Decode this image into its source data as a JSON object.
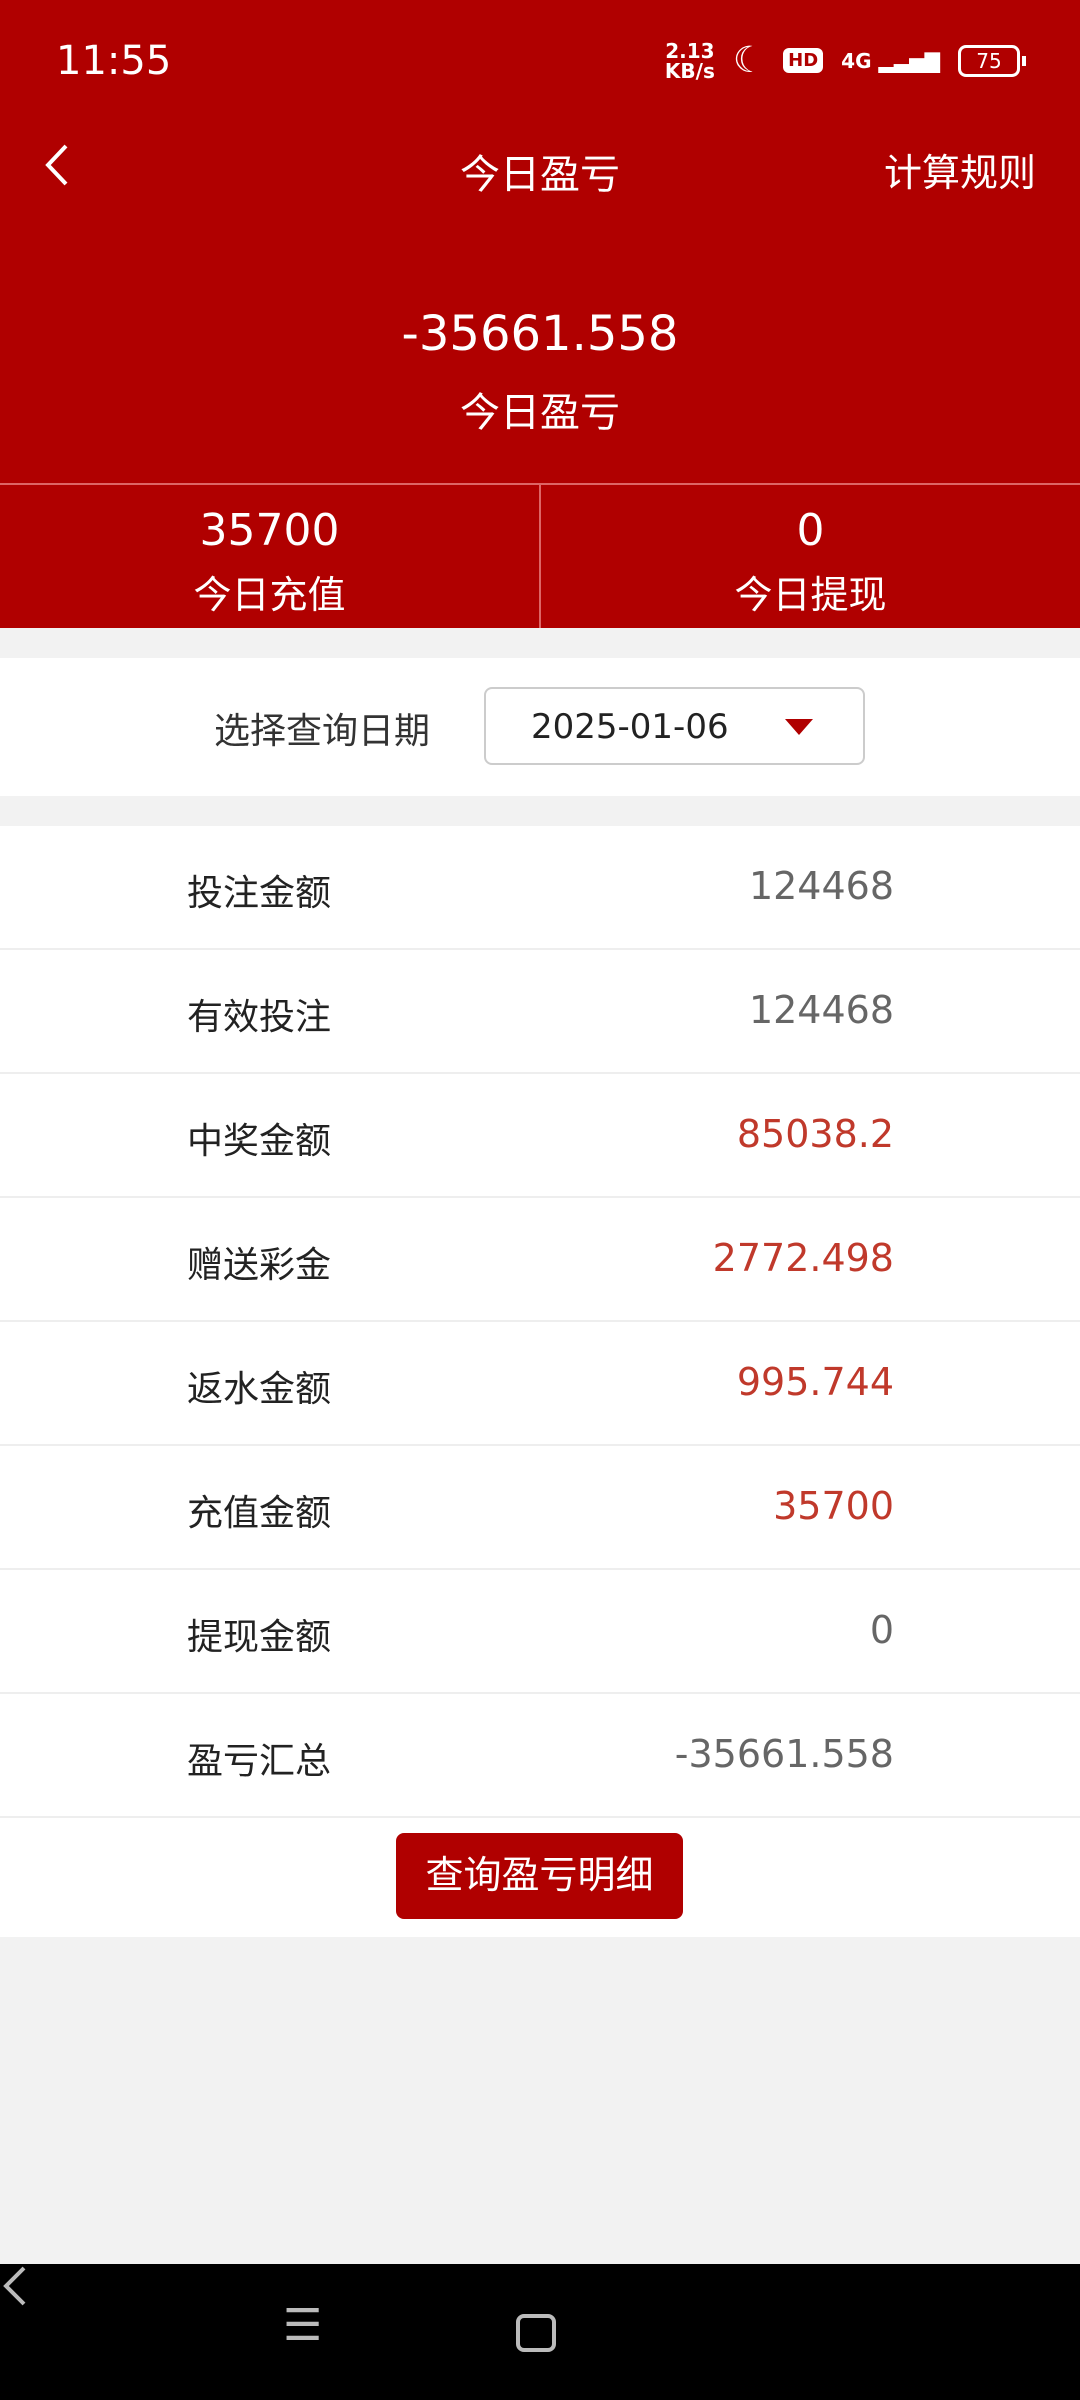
{
  "status": {
    "time": "11:55",
    "speed_value": "2.13",
    "speed_unit": "KB/s",
    "hd": "HD",
    "network": "4G",
    "battery": "75"
  },
  "nav": {
    "title": "今日盈亏",
    "rules": "计算规则"
  },
  "summary": {
    "value": "-35661.558",
    "label": "今日盈亏"
  },
  "stats": [
    {
      "value": "35700",
      "label": "今日充值"
    },
    {
      "value": "0",
      "label": "今日提现"
    }
  ],
  "date": {
    "label": "选择查询日期",
    "value": "2025-01-06"
  },
  "rows": [
    {
      "label": "投注金额",
      "value": "124468"
    },
    {
      "label": "有效投注",
      "value": "124468"
    },
    {
      "label": "中奖金额",
      "value": "85038.2"
    },
    {
      "label": "赠送彩金",
      "value": "2772.498"
    },
    {
      "label": "返水金额",
      "value": "995.744"
    },
    {
      "label": "充值金额",
      "value": "35700"
    },
    {
      "label": "提现金额",
      "value": "0"
    },
    {
      "label": "盈亏汇总",
      "value": "-35661.558"
    }
  ],
  "button": "查询盈亏明细",
  "colors": {
    "brand": "#b00000",
    "highlight_value": "#c0392b"
  }
}
